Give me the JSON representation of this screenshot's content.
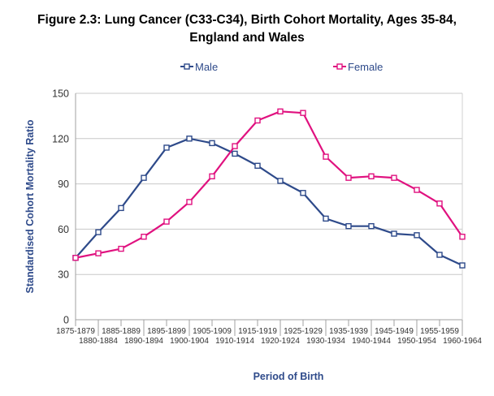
{
  "chart_data": {
    "type": "line",
    "title_lines": [
      "Figure 2.3: Lung Cancer (C33-C34), Birth Cohort Mortality, Ages 35-84,",
      "England and Wales"
    ],
    "xlabel": "Period of Birth",
    "ylabel": "Standardised Cohort Mortality Ratio",
    "ylim": [
      0,
      150
    ],
    "yticks": [
      0,
      30,
      60,
      90,
      120,
      150
    ],
    "grid": "horizontal",
    "legend_position": "top",
    "categories": [
      "1875-1879",
      "1880-1884",
      "1885-1889",
      "1890-1894",
      "1895-1899",
      "1900-1904",
      "1905-1909",
      "1910-1914",
      "1915-1919",
      "1920-1924",
      "1925-1929",
      "1930-1934",
      "1935-1939",
      "1940-1944",
      "1945-1949",
      "1950-1954",
      "1955-1959",
      "1960-1964"
    ],
    "series": [
      {
        "name": "Male",
        "color": "#2e4a8a",
        "values": [
          41,
          58,
          74,
          94,
          114,
          120,
          117,
          110,
          102,
          92,
          84,
          67,
          62,
          62,
          57,
          56,
          43,
          36
        ]
      },
      {
        "name": "Female",
        "color": "#e0117f",
        "values": [
          41,
          44,
          47,
          55,
          65,
          78,
          95,
          115,
          132,
          138,
          137,
          108,
          94,
          95,
          94,
          86,
          77,
          55
        ]
      }
    ]
  }
}
